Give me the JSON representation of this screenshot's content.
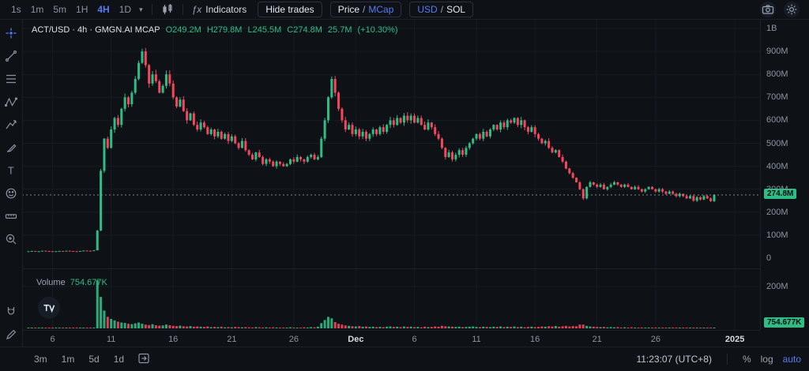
{
  "colors": {
    "up": "#2ebd85",
    "down": "#f6465d",
    "accent": "#587af2",
    "grid": "#161c25",
    "badge_green": "#2ebd85",
    "text_dim": "#8b93a3"
  },
  "toolbar": {
    "timeframes": [
      "1s",
      "1m",
      "5m",
      "1H",
      "4H",
      "1D"
    ],
    "active_timeframe": "4H",
    "caret": "▾",
    "fx_glyph": "ƒx",
    "indicators_label": "Indicators",
    "hide_trades_label": "Hide trades",
    "price_label": "Price",
    "mcap_label": "MCap",
    "usd_label": "USD",
    "sol_label": "SOL",
    "pair_slash": "/"
  },
  "legend": {
    "title": "ACT/USD · 4h · GMGN.AI MCAP",
    "o": "O249.2M",
    "h": "H279.8M",
    "l": "L245.5M",
    "c": "C274.8M",
    "volume": "25.7M",
    "change": "(+10.30%)"
  },
  "price_axis": {
    "labels": [
      {
        "text": "1B",
        "v": 1000
      },
      {
        "text": "900M",
        "v": 900
      },
      {
        "text": "800M",
        "v": 800
      },
      {
        "text": "700M",
        "v": 700
      },
      {
        "text": "600M",
        "v": 600
      },
      {
        "text": "500M",
        "v": 500
      },
      {
        "text": "400M",
        "v": 400
      },
      {
        "text": "300M",
        "v": 300
      },
      {
        "text": "200M",
        "v": 200
      },
      {
        "text": "100M",
        "v": 100
      },
      {
        "text": "0",
        "v": 0
      }
    ],
    "current_badge": "274.8M"
  },
  "volume_pane": {
    "label": "Volume",
    "value": "754.677K",
    "axis_label": {
      "text": "200M",
      "v": 200
    },
    "badge": "754.677K"
  },
  "time_axis": {
    "labels": [
      {
        "text": "6",
        "idx": 7,
        "major": false
      },
      {
        "text": "11",
        "idx": 24,
        "major": false
      },
      {
        "text": "16",
        "idx": 42,
        "major": false
      },
      {
        "text": "21",
        "idx": 59,
        "major": false
      },
      {
        "text": "26",
        "idx": 77,
        "major": false
      },
      {
        "text": "Dec",
        "idx": 95,
        "major": true
      },
      {
        "text": "6",
        "idx": 112,
        "major": false
      },
      {
        "text": "11",
        "idx": 130,
        "major": false
      },
      {
        "text": "16",
        "idx": 147,
        "major": false
      },
      {
        "text": "21",
        "idx": 165,
        "major": false
      },
      {
        "text": "26",
        "idx": 182,
        "major": false
      },
      {
        "text": "2025",
        "idx": 205,
        "major": true
      }
    ]
  },
  "bottom_bar": {
    "ranges": [
      "3m",
      "1m",
      "5d",
      "1d"
    ],
    "clock": "11:23:07 (UTC+8)",
    "percent": "%",
    "log": "log",
    "auto": "auto"
  },
  "chart_data": {
    "type": "candlestick+volume-bar",
    "title": "ACT/USD · 4h · GMGN.AI MCAP",
    "interval": "4h",
    "unit": "M (market cap, USD)",
    "ohlc_summary": {
      "open": 249.2,
      "high": 279.8,
      "low": 245.5,
      "close": 274.8,
      "volume": "25.7M",
      "change_pct": 10.3
    },
    "current_price_m": 274.8,
    "last_volume": "754.677K",
    "y_axis": {
      "min": 0,
      "max": 1000,
      "gridline_step": 100
    },
    "volume_axis": {
      "max": 260,
      "gridline": 200
    },
    "x_range": "Nov 6 — Dec 31 (2025 marker at right edge)",
    "closes_m": [
      30,
      31,
      29,
      30,
      32,
      31,
      30,
      29,
      30,
      31,
      30,
      32,
      31,
      30,
      29,
      31,
      33,
      32,
      31,
      34,
      120,
      380,
      520,
      480,
      560,
      610,
      580,
      650,
      700,
      670,
      720,
      780,
      850,
      900,
      840,
      760,
      800,
      770,
      720,
      750,
      800,
      760,
      700,
      660,
      690,
      640,
      600,
      630,
      580,
      560,
      590,
      570,
      540,
      560,
      530,
      550,
      520,
      540,
      510,
      530,
      500,
      480,
      510,
      470,
      450,
      430,
      460,
      440,
      410,
      430,
      420,
      400,
      420,
      410,
      400,
      410,
      430,
      420,
      440,
      430,
      420,
      440,
      450,
      430,
      440,
      520,
      600,
      700,
      780,
      720,
      650,
      600,
      560,
      580,
      540,
      560,
      530,
      550,
      520,
      540,
      560,
      540,
      570,
      550,
      580,
      600,
      580,
      610,
      590,
      620,
      600,
      620,
      590,
      610,
      580,
      560,
      590,
      570,
      540,
      520,
      480,
      440,
      460,
      430,
      450,
      470,
      450,
      480,
      500,
      520,
      540,
      520,
      550,
      530,
      560,
      580,
      560,
      590,
      570,
      600,
      590,
      610,
      580,
      600,
      570,
      550,
      570,
      540,
      520,
      500,
      510,
      480,
      460,
      470,
      440,
      420,
      390,
      370,
      350,
      330,
      300,
      260,
      310,
      330,
      320,
      310,
      320,
      300,
      310,
      320,
      330,
      320,
      310,
      320,
      310,
      300,
      310,
      300,
      290,
      300,
      310,
      300,
      290,
      300,
      290,
      280,
      290,
      280,
      270,
      280,
      270,
      260,
      270,
      250,
      265,
      255,
      270,
      260,
      248,
      274.8
    ],
    "volumes_m": [
      2,
      1,
      2,
      1,
      2,
      3,
      2,
      1,
      2,
      2,
      1,
      2,
      3,
      2,
      1,
      2,
      2,
      3,
      2,
      4,
      230,
      150,
      85,
      55,
      45,
      38,
      32,
      28,
      26,
      22,
      20,
      24,
      28,
      22,
      18,
      16,
      20,
      15,
      13,
      14,
      18,
      15,
      12,
      11,
      13,
      10,
      9,
      11,
      8,
      9,
      8,
      7,
      9,
      6,
      7,
      6,
      8,
      5,
      6,
      5,
      7,
      6,
      5,
      6,
      5,
      4,
      6,
      5,
      4,
      5,
      4,
      5,
      4,
      3,
      4,
      3,
      5,
      4,
      3,
      4,
      5,
      4,
      6,
      5,
      8,
      25,
      40,
      55,
      48,
      30,
      22,
      18,
      14,
      12,
      10,
      9,
      11,
      8,
      9,
      7,
      8,
      6,
      7,
      6,
      8,
      9,
      7,
      8,
      6,
      9,
      7,
      8,
      6,
      7,
      5,
      8,
      6,
      7,
      9,
      8,
      12,
      10,
      9,
      8,
      7,
      8,
      6,
      7,
      8,
      9,
      7,
      6,
      8,
      7,
      6,
      8,
      7,
      9,
      6,
      8,
      7,
      9,
      6,
      8,
      5,
      7,
      8,
      6,
      7,
      9,
      8,
      10,
      9,
      11,
      8,
      10,
      12,
      9,
      11,
      10,
      18,
      18,
      12,
      9,
      8,
      7,
      6,
      7,
      5,
      6,
      5,
      6,
      4,
      5,
      4,
      5,
      4,
      3,
      4,
      3,
      4,
      3,
      4,
      3,
      4,
      3,
      2,
      3,
      2,
      3,
      3,
      2,
      3,
      4,
      2,
      3,
      2,
      3,
      2,
      1
    ]
  }
}
